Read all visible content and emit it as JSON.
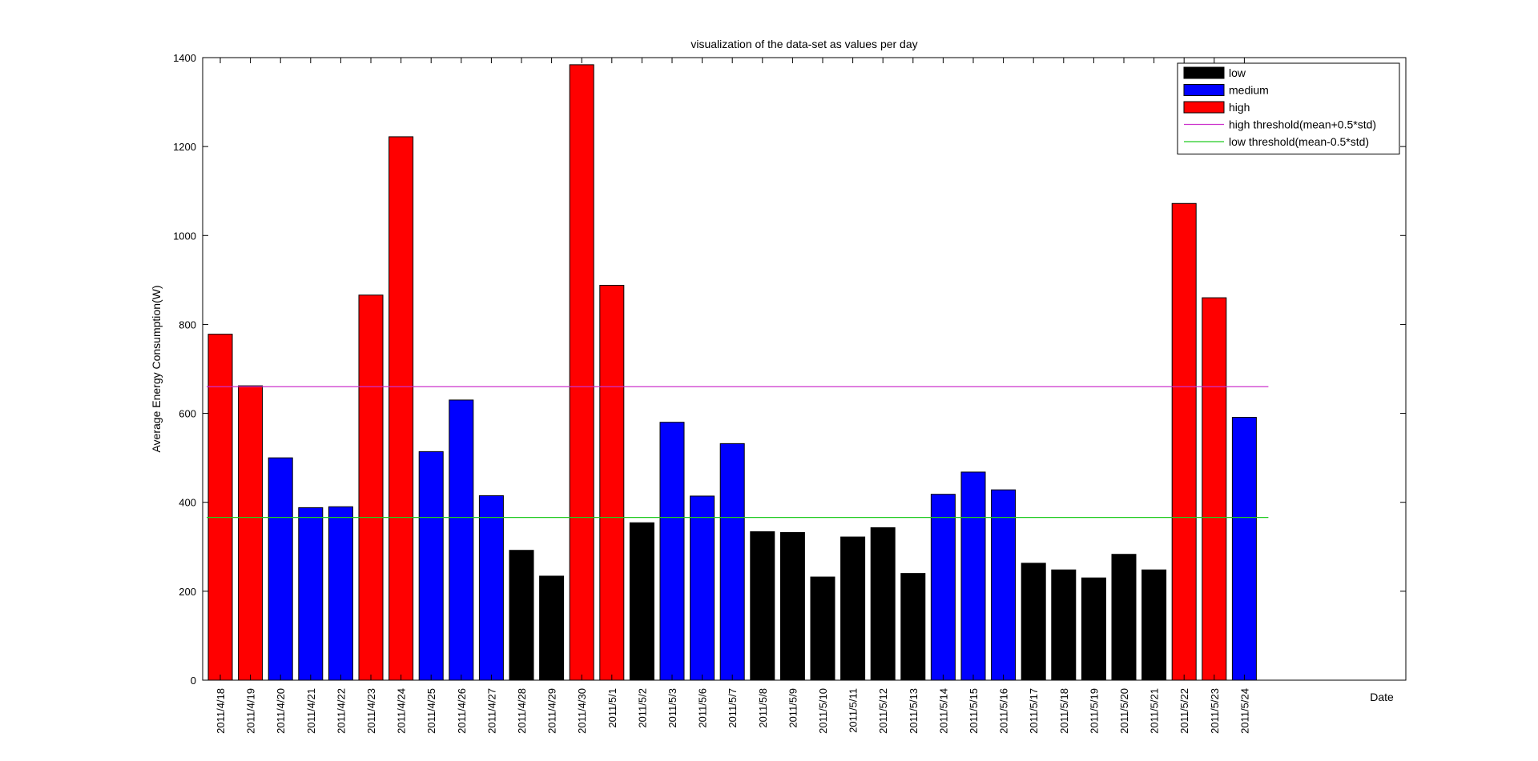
{
  "chart_data": {
    "type": "bar",
    "title": "visualization of the data-set as values per day",
    "xlabel": "Date",
    "ylabel": "Average Energy Consumption(W)",
    "ylim": [
      0,
      1400
    ],
    "yticks": [
      0,
      200,
      400,
      600,
      800,
      1000,
      1200,
      1400
    ],
    "grid": false,
    "legend_position": "top-right",
    "categories": [
      "2011/4/18",
      "2011/4/19",
      "2011/4/20",
      "2011/4/21",
      "2011/4/22",
      "2011/4/23",
      "2011/4/24",
      "2011/4/25",
      "2011/4/26",
      "2011/4/27",
      "2011/4/28",
      "2011/4/29",
      "2011/4/30",
      "2011/5/1",
      "2011/5/2",
      "2011/5/3",
      "2011/5/6",
      "2011/5/7",
      "2011/5/8",
      "2011/5/9",
      "2011/5/10",
      "2011/5/11",
      "2011/5/12",
      "2011/5/13",
      "2011/5/14",
      "2011/5/15",
      "2011/5/16",
      "2011/5/17",
      "2011/5/18",
      "2011/5/19",
      "2011/5/20",
      "2011/5/21",
      "2011/5/22",
      "2011/5/23",
      "2011/5/24"
    ],
    "values": [
      778,
      662,
      500,
      388,
      390,
      866,
      1222,
      514,
      630,
      415,
      292,
      234,
      1384,
      888,
      354,
      580,
      414,
      532,
      334,
      332,
      232,
      322,
      343,
      240,
      418,
      468,
      428,
      263,
      248,
      230,
      283,
      248,
      1072,
      860,
      591
    ],
    "classes": [
      "high",
      "high",
      "medium",
      "medium",
      "medium",
      "high",
      "high",
      "medium",
      "medium",
      "medium",
      "low",
      "low",
      "high",
      "high",
      "low",
      "medium",
      "medium",
      "medium",
      "low",
      "low",
      "low",
      "low",
      "low",
      "low",
      "medium",
      "medium",
      "medium",
      "low",
      "low",
      "low",
      "low",
      "low",
      "high",
      "high",
      "medium"
    ],
    "class_colors": {
      "low": "#000000",
      "medium": "#0000ff",
      "high": "#ff0000"
    },
    "thresholds": [
      {
        "name": "high threshold(mean+0.5*std)",
        "value": 660,
        "color": "#cc33cc"
      },
      {
        "name": "low threshold(mean-0.5*std)",
        "value": 366,
        "color": "#22cc22"
      }
    ],
    "legend": [
      {
        "label": "low",
        "kind": "patch",
        "color": "#000000"
      },
      {
        "label": "medium",
        "kind": "patch",
        "color": "#0000ff"
      },
      {
        "label": "high",
        "kind": "patch",
        "color": "#ff0000"
      },
      {
        "label": "high threshold(mean+0.5*std)",
        "kind": "line",
        "color": "#cc33cc"
      },
      {
        "label": "low threshold(mean-0.5*std)",
        "kind": "line",
        "color": "#22cc22"
      }
    ]
  }
}
